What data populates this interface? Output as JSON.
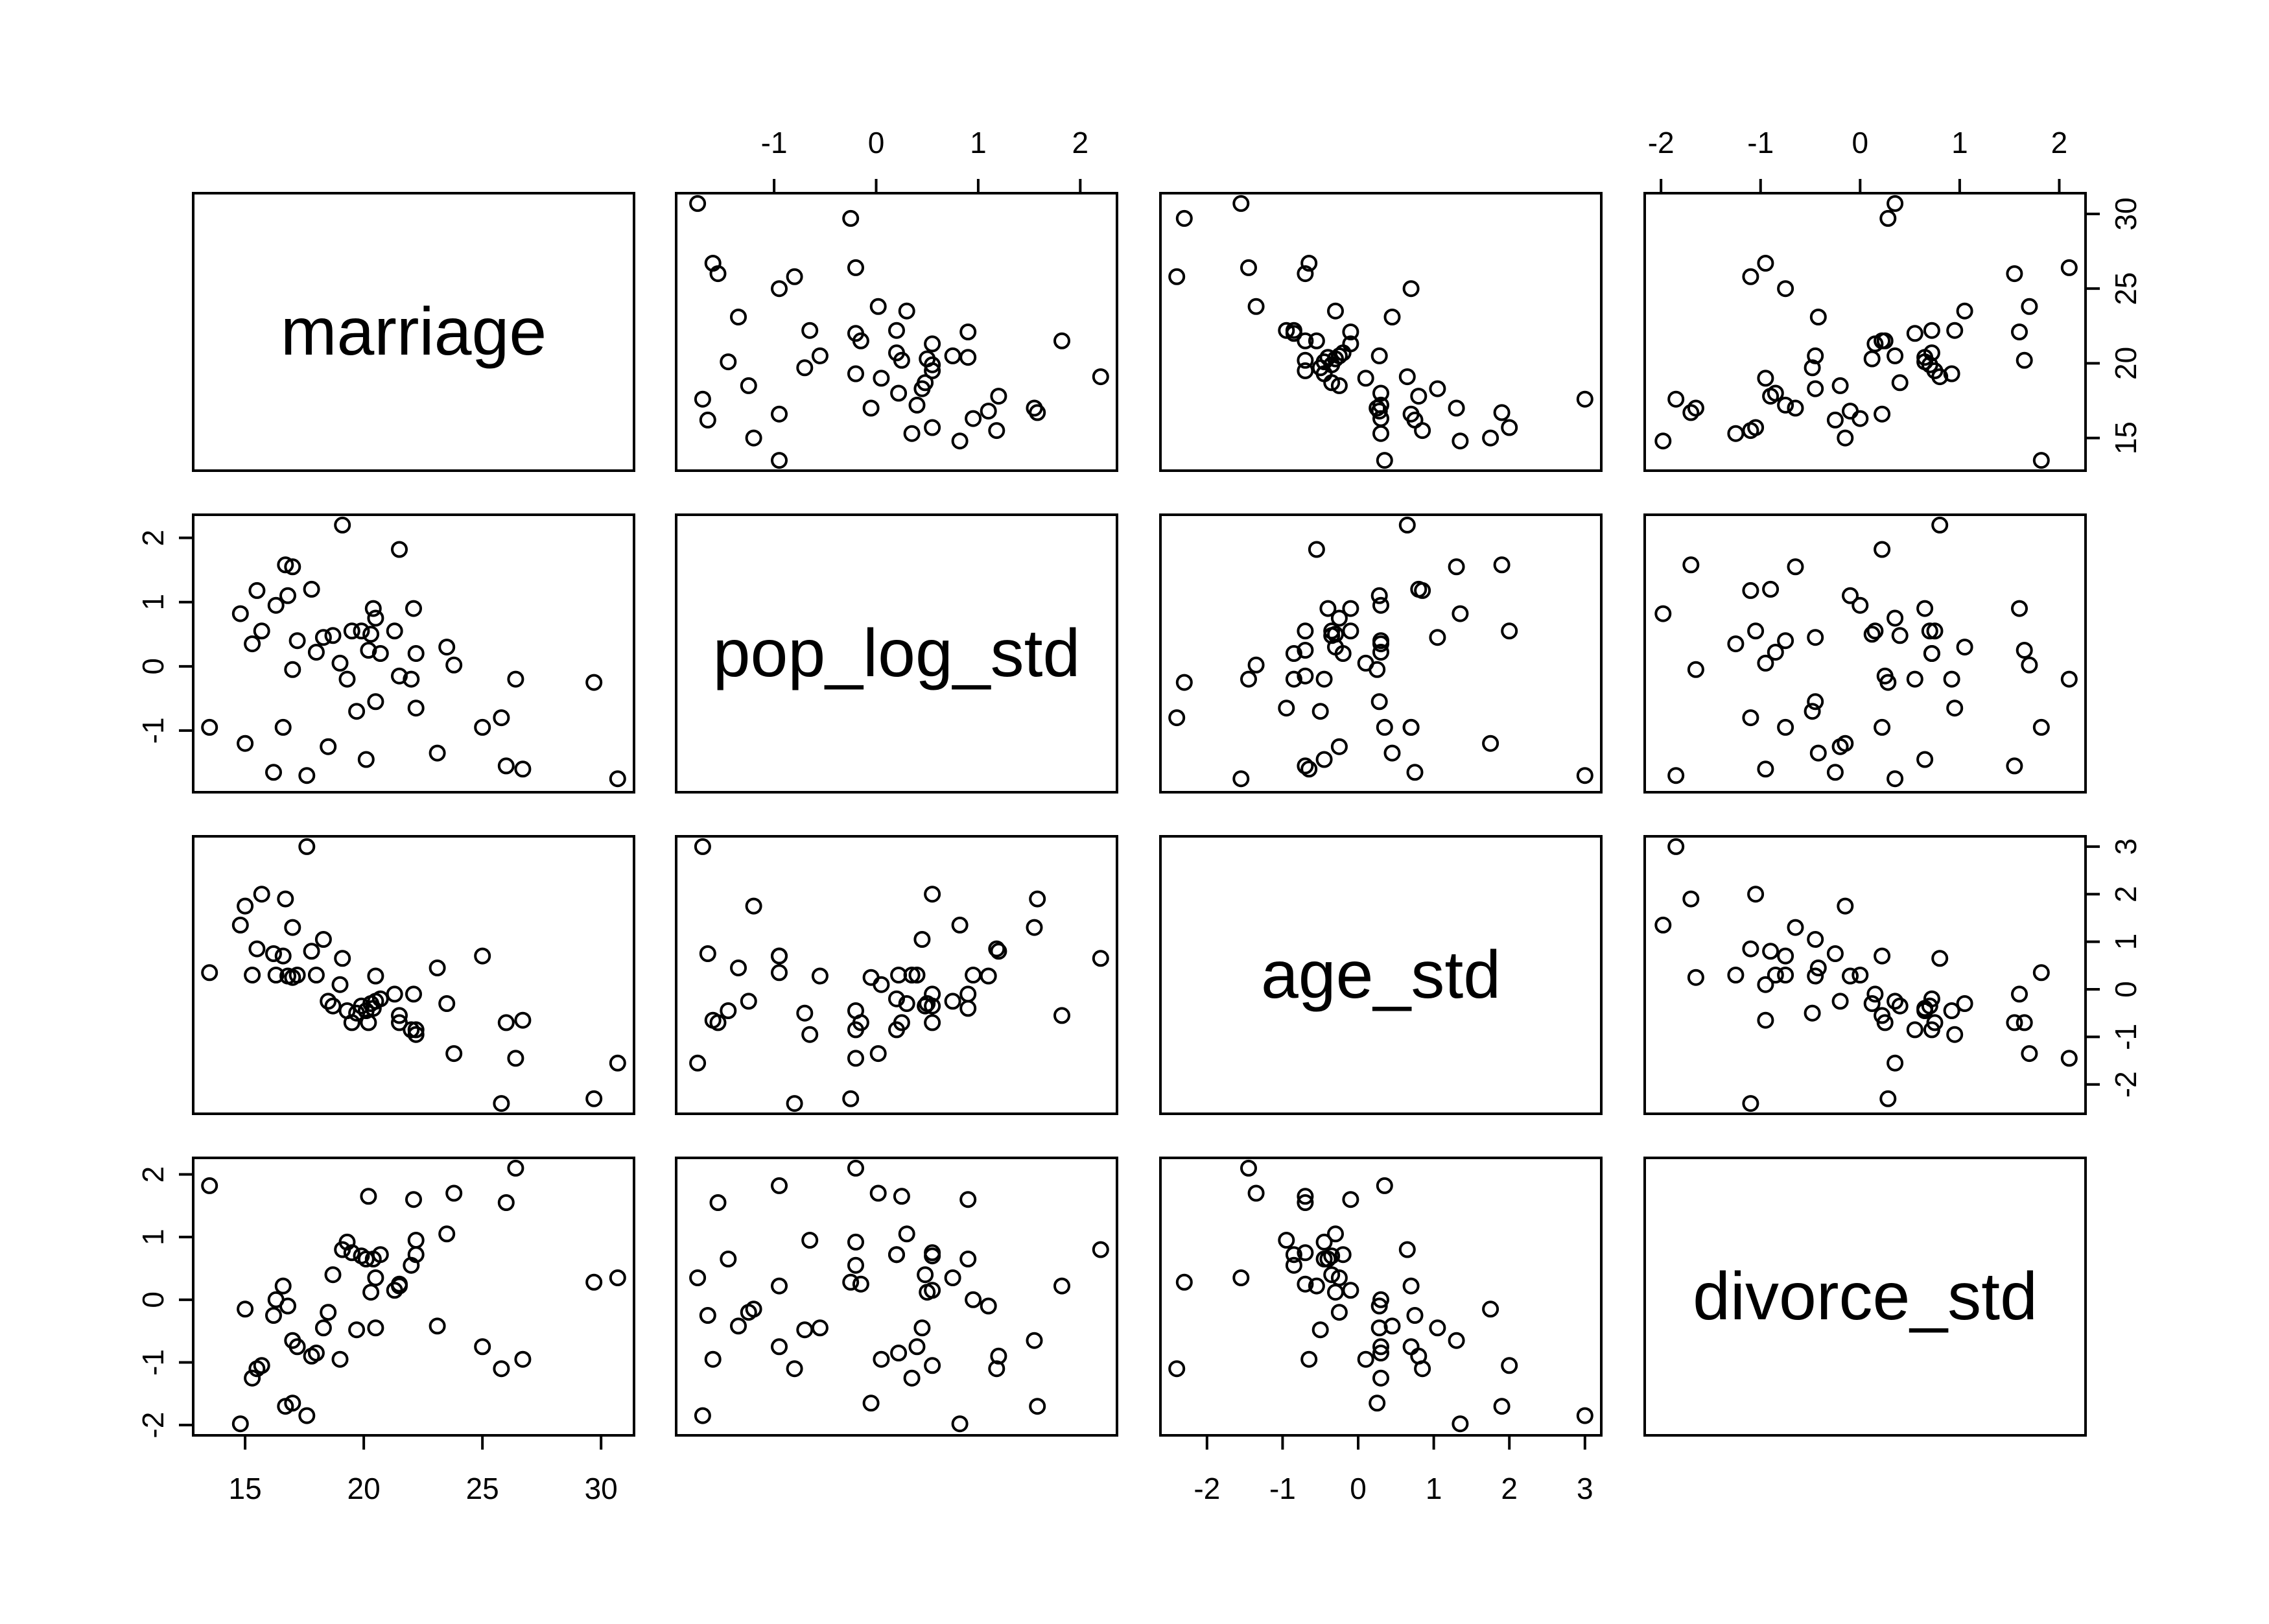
{
  "chart_data": {
    "type": "scatter-matrix",
    "variables": [
      "marriage",
      "pop_log_std",
      "age_std",
      "divorce_std"
    ],
    "ranges": {
      "marriage": [
        13.5,
        30.7
      ],
      "pop_log_std": [
        -1.8,
        2.2
      ],
      "age_std": [
        -2.4,
        3.0
      ],
      "divorce_std": [
        -2.0,
        2.1
      ]
    },
    "ticks": {
      "marriage": [
        15,
        20,
        25,
        30
      ],
      "pop_log_std": [
        -1,
        0,
        1,
        2
      ],
      "age_std": [
        -2,
        -1,
        0,
        1,
        2,
        3
      ],
      "divorce_std": [
        -2,
        -1,
        0,
        1,
        2
      ]
    },
    "tick_labels": {
      "marriage": [
        "15",
        "20",
        "25",
        "30"
      ],
      "pop_log_std": [
        "-1",
        "0",
        "1",
        "2"
      ],
      "age_std": [
        "-2",
        "-1",
        "0",
        "1",
        "2",
        "3"
      ],
      "divorce_std": [
        "-2",
        "-1",
        "0",
        "1",
        "2"
      ]
    },
    "axis_placement": {
      "top": [
        "pop_log_std",
        "divorce_std"
      ],
      "bottom": [
        "marriage",
        "age_std"
      ],
      "left": [
        "pop_log_std",
        "divorce_std"
      ],
      "right": [
        "marriage",
        "age_std"
      ]
    },
    "marker": "open-circle",
    "grid": false,
    "legend": "none",
    "observations": [
      {
        "marriage": 13.5,
        "pop_log_std": -0.95,
        "age_std": 0.35,
        "divorce_std": 1.82
      },
      {
        "marriage": 14.8,
        "pop_log_std": 0.82,
        "age_std": 1.35,
        "divorce_std": -1.98
      },
      {
        "marriage": 15.0,
        "pop_log_std": -1.2,
        "age_std": 1.75,
        "divorce_std": -0.15
      },
      {
        "marriage": 15.3,
        "pop_log_std": 0.35,
        "age_std": 0.3,
        "divorce_std": -1.25
      },
      {
        "marriage": 15.5,
        "pop_log_std": 1.18,
        "age_std": 0.85,
        "divorce_std": -1.1
      },
      {
        "marriage": 15.7,
        "pop_log_std": 0.55,
        "age_std": 2.0,
        "divorce_std": -1.05
      },
      {
        "marriage": 16.2,
        "pop_log_std": -1.65,
        "age_std": 0.75,
        "divorce_std": -0.25
      },
      {
        "marriage": 16.3,
        "pop_log_std": 0.95,
        "age_std": 0.3,
        "divorce_std": 0.0
      },
      {
        "marriage": 16.6,
        "pop_log_std": -0.95,
        "age_std": 0.7,
        "divorce_std": 0.22
      },
      {
        "marriage": 16.7,
        "pop_log_std": 1.58,
        "age_std": 1.9,
        "divorce_std": -1.7
      },
      {
        "marriage": 16.8,
        "pop_log_std": 1.1,
        "age_std": 0.28,
        "divorce_std": -0.1
      },
      {
        "marriage": 17.0,
        "pop_log_std": 1.55,
        "age_std": 1.3,
        "divorce_std": -0.65
      },
      {
        "marriage": 17.0,
        "pop_log_std": -0.05,
        "age_std": 0.25,
        "divorce_std": -1.65
      },
      {
        "marriage": 17.2,
        "pop_log_std": 0.4,
        "age_std": 0.3,
        "divorce_std": -0.75
      },
      {
        "marriage": 17.6,
        "pop_log_std": -1.7,
        "age_std": 3.0,
        "divorce_std": -1.85
      },
      {
        "marriage": 17.8,
        "pop_log_std": 1.2,
        "age_std": 0.8,
        "divorce_std": -0.9
      },
      {
        "marriage": 18.0,
        "pop_log_std": 0.22,
        "age_std": 0.3,
        "divorce_std": -0.85
      },
      {
        "marriage": 18.3,
        "pop_log_std": 0.45,
        "age_std": 1.05,
        "divorce_std": -0.45
      },
      {
        "marriage": 18.5,
        "pop_log_std": -1.25,
        "age_std": -0.25,
        "divorce_std": -0.2
      },
      {
        "marriage": 18.7,
        "pop_log_std": 0.48,
        "age_std": -0.35,
        "divorce_std": 0.4
      },
      {
        "marriage": 19.0,
        "pop_log_std": 0.05,
        "age_std": 0.1,
        "divorce_std": -0.95
      },
      {
        "marriage": 19.1,
        "pop_log_std": 2.2,
        "age_std": 0.65,
        "divorce_std": 0.8
      },
      {
        "marriage": 19.3,
        "pop_log_std": -0.2,
        "age_std": -0.45,
        "divorce_std": 0.92
      },
      {
        "marriage": 19.5,
        "pop_log_std": 0.55,
        "age_std": -0.7,
        "divorce_std": 0.75
      },
      {
        "marriage": 19.7,
        "pop_log_std": -0.7,
        "age_std": -0.5,
        "divorce_std": -0.48
      },
      {
        "marriage": 19.9,
        "pop_log_std": 0.55,
        "age_std": -0.35,
        "divorce_std": 0.7
      },
      {
        "marriage": 20.1,
        "pop_log_std": -1.45,
        "age_std": -0.45,
        "divorce_std": 0.65
      },
      {
        "marriage": 20.2,
        "pop_log_std": 0.25,
        "age_std": -0.7,
        "divorce_std": 1.65
      },
      {
        "marriage": 20.3,
        "pop_log_std": 0.5,
        "age_std": -0.3,
        "divorce_std": 0.12
      },
      {
        "marriage": 20.4,
        "pop_log_std": 0.9,
        "age_std": -0.4,
        "divorce_std": 0.65
      },
      {
        "marriage": 20.5,
        "pop_log_std": -0.55,
        "age_std": 0.28,
        "divorce_std": -0.45
      },
      {
        "marriage": 20.5,
        "pop_log_std": 0.75,
        "age_std": -0.25,
        "divorce_std": 0.35
      },
      {
        "marriage": 20.7,
        "pop_log_std": 0.2,
        "age_std": -0.2,
        "divorce_std": 0.72
      },
      {
        "marriage": 21.3,
        "pop_log_std": 0.55,
        "age_std": -0.1,
        "divorce_std": 0.15
      },
      {
        "marriage": 21.5,
        "pop_log_std": 1.82,
        "age_std": -0.55,
        "divorce_std": 0.22
      },
      {
        "marriage": 21.5,
        "pop_log_std": -0.15,
        "age_std": -0.7,
        "divorce_std": 0.25
      },
      {
        "marriage": 22.0,
        "pop_log_std": -0.2,
        "age_std": -0.85,
        "divorce_std": 0.55
      },
      {
        "marriage": 22.1,
        "pop_log_std": 0.9,
        "age_std": -0.1,
        "divorce_std": 1.6
      },
      {
        "marriage": 22.2,
        "pop_log_std": -0.65,
        "age_std": -0.95,
        "divorce_std": 0.95
      },
      {
        "marriage": 22.2,
        "pop_log_std": 0.2,
        "age_std": -0.85,
        "divorce_std": 0.72
      },
      {
        "marriage": 23.1,
        "pop_log_std": -1.35,
        "age_std": 0.45,
        "divorce_std": -0.42
      },
      {
        "marriage": 23.5,
        "pop_log_std": 0.3,
        "age_std": -0.3,
        "divorce_std": 1.05
      },
      {
        "marriage": 23.8,
        "pop_log_std": 0.02,
        "age_std": -1.35,
        "divorce_std": 1.7
      },
      {
        "marriage": 25.0,
        "pop_log_std": -0.95,
        "age_std": 0.7,
        "divorce_std": -0.75
      },
      {
        "marriage": 25.8,
        "pop_log_std": -0.8,
        "age_std": -2.4,
        "divorce_std": -1.1
      },
      {
        "marriage": 26.0,
        "pop_log_std": -1.55,
        "age_std": -0.7,
        "divorce_std": 1.55
      },
      {
        "marriage": 26.4,
        "pop_log_std": -0.2,
        "age_std": -1.45,
        "divorce_std": 2.1
      },
      {
        "marriage": 26.7,
        "pop_log_std": -1.6,
        "age_std": -0.65,
        "divorce_std": -0.95
      },
      {
        "marriage": 29.7,
        "pop_log_std": -0.25,
        "age_std": -2.3,
        "divorce_std": 0.28
      },
      {
        "marriage": 30.7,
        "pop_log_std": -1.75,
        "age_std": -1.55,
        "divorce_std": 0.35
      }
    ]
  }
}
